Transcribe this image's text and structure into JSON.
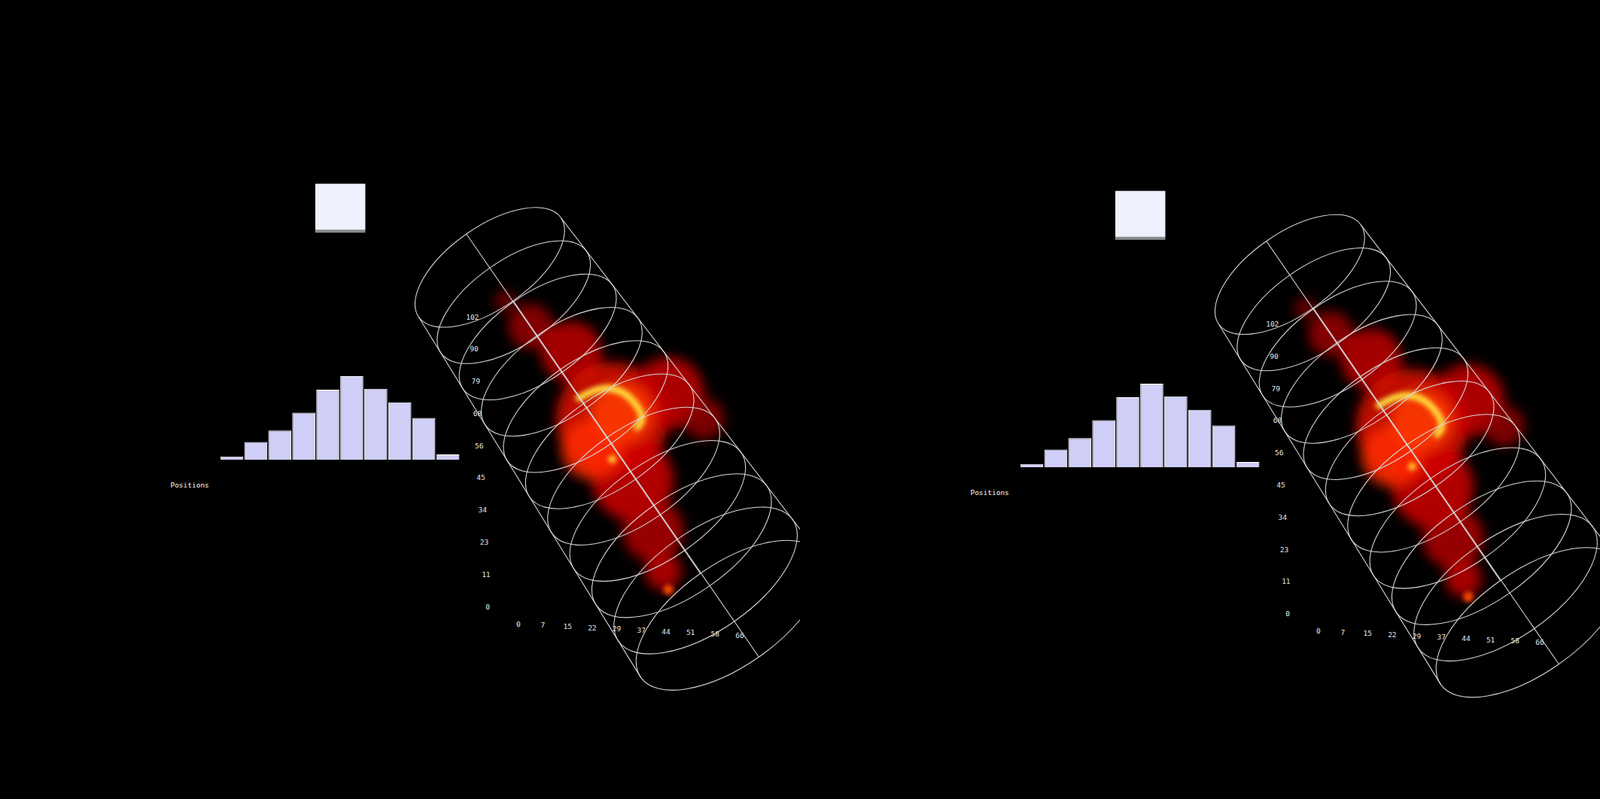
{
  "chart_data": {
    "type": "bar",
    "x_label": "Positions",
    "values": [
      3,
      17,
      28,
      45,
      67,
      80,
      68,
      55,
      40,
      5
    ],
    "ylim": [
      0,
      80
    ],
    "tick_labels": false,
    "grid": false,
    "color": "#cfcff7"
  },
  "scene": {
    "views": 2,
    "cylinder_y_ticks": [
      0,
      11,
      23,
      34,
      45,
      56,
      68,
      79,
      90,
      102
    ],
    "cylinder_x_ticks": [
      0,
      7,
      15,
      22,
      29,
      37,
      44,
      51,
      58,
      66
    ]
  }
}
